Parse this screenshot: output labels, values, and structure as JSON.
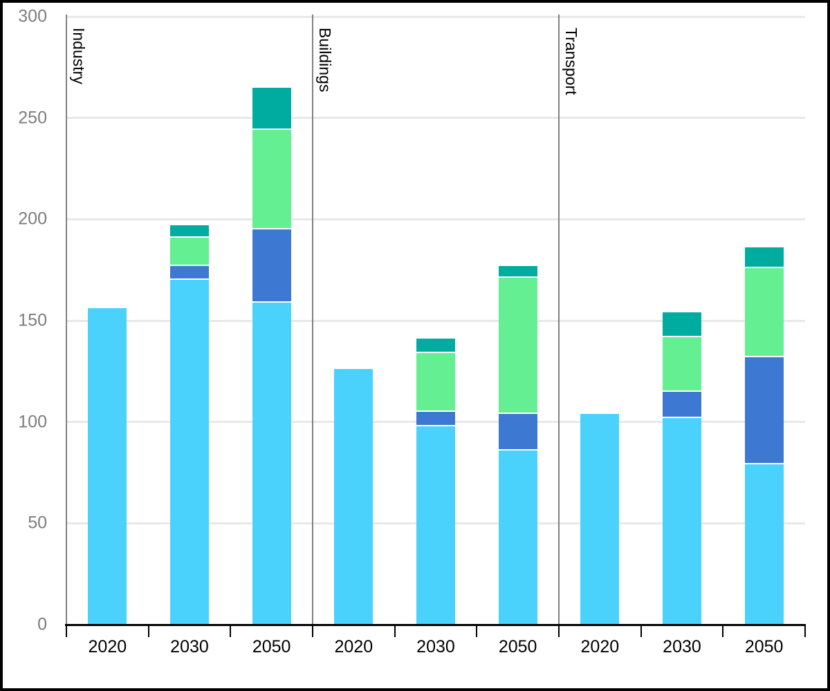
{
  "chart_data": {
    "type": "bar",
    "stacked": true,
    "title": "",
    "xlabel": "",
    "ylabel": "",
    "ylim": [
      0,
      300
    ],
    "yticks": [
      0,
      50,
      100,
      150,
      200,
      250,
      300
    ],
    "grid": "horizontal",
    "legend_position": "none",
    "groups": [
      {
        "label": "Industry",
        "categories": [
          "2020",
          "2030",
          "2050"
        ]
      },
      {
        "label": "Buildings",
        "categories": [
          "2020",
          "2030",
          "2050"
        ]
      },
      {
        "label": "Transport",
        "categories": [
          "2020",
          "2030",
          "2050"
        ]
      }
    ],
    "x_flat": [
      "2020",
      "2030",
      "2050",
      "2020",
      "2030",
      "2050",
      "2020",
      "2030",
      "2050"
    ],
    "series": [
      {
        "name": "light-blue",
        "color": "#4AD1FC",
        "values": [
          156,
          170,
          159,
          126,
          98,
          86,
          104,
          102,
          79
        ]
      },
      {
        "name": "royal-blue",
        "color": "#3D79D2",
        "values": [
          0,
          7,
          36,
          0,
          7,
          18,
          0,
          13,
          53
        ]
      },
      {
        "name": "light-green",
        "color": "#63EF92",
        "values": [
          0,
          14,
          49,
          0,
          29,
          67,
          0,
          27,
          44
        ]
      },
      {
        "name": "teal",
        "color": "#00ACA0",
        "values": [
          0,
          6,
          21,
          0,
          7,
          6,
          0,
          12,
          10
        ]
      }
    ],
    "stack_order_bottom_to_top": [
      "light-blue",
      "royal-blue",
      "light-green",
      "teal"
    ]
  },
  "style": {
    "grid_color": "#E8E8E8",
    "axis_line_color": "#000000",
    "separator_color": "#808080",
    "y_label_color": "#7C7C7C",
    "x_label_color": "#000000",
    "group_label_color": "#000000",
    "background": "#FFFFFF",
    "border_color": "#000000"
  }
}
